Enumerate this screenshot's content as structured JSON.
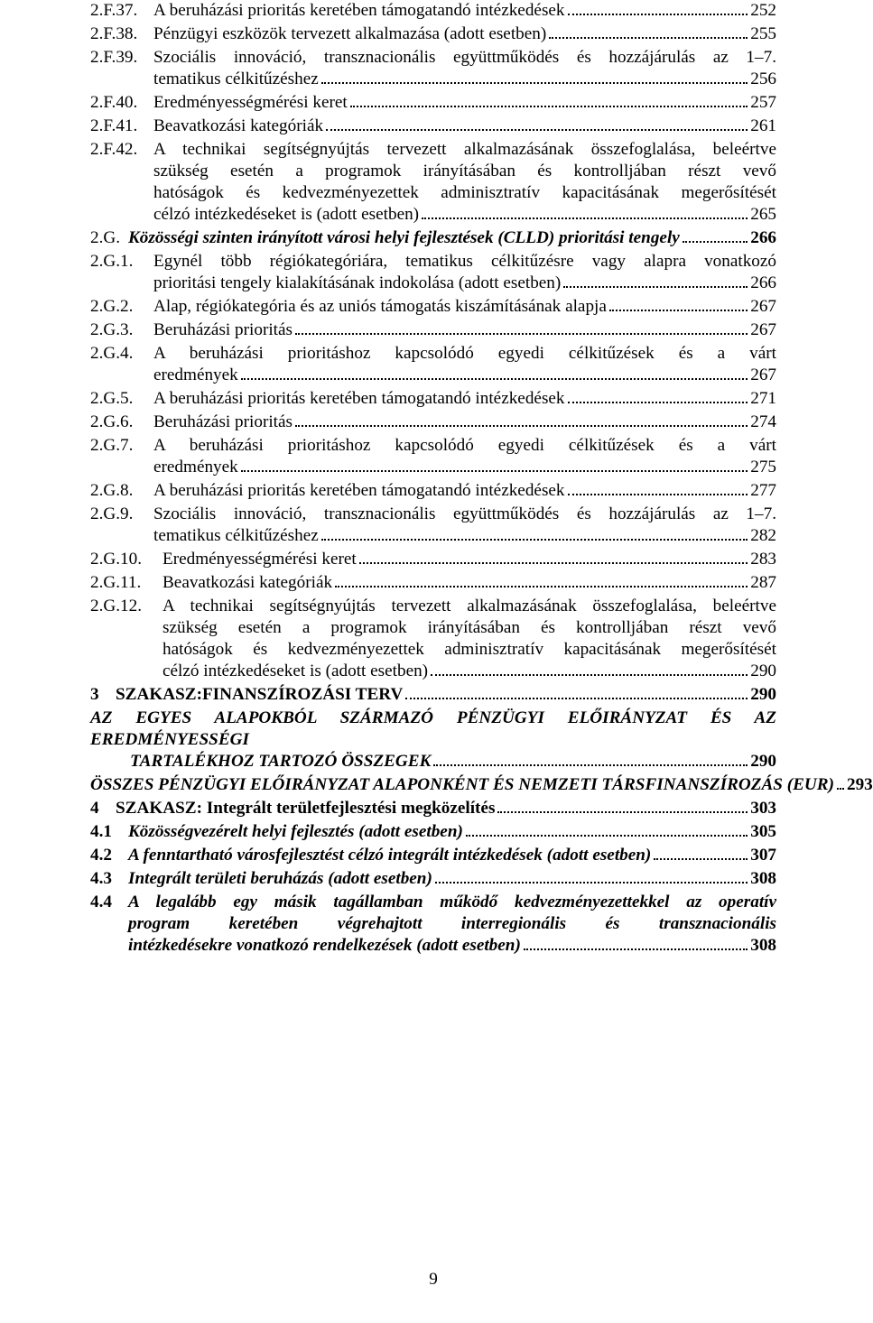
{
  "page_number": "9",
  "font_family": "Times New Roman",
  "text_color": "#000000",
  "background_color": "#ffffff",
  "toc": [
    {
      "num": "2.F.37.",
      "lines": [
        "A beruházási prioritás keretében támogatandó intézkedések"
      ],
      "page": "252",
      "numclass": "toc-num"
    },
    {
      "num": "2.F.38.",
      "lines": [
        "Pénzügyi eszközök tervezett alkalmazása (adott esetben)"
      ],
      "page": "255",
      "numclass": "toc-num"
    },
    {
      "num": "2.F.39.",
      "lines": [
        "Szociális innováció, transznacionális együttműködés és hozzájárulás az 1–7.",
        "tematikus célkitűzéshez"
      ],
      "page": "256",
      "numclass": "toc-num"
    },
    {
      "num": "2.F.40.",
      "lines": [
        "Eredményességmérési keret"
      ],
      "page": "257",
      "numclass": "toc-num"
    },
    {
      "num": "2.F.41.",
      "lines": [
        "Beavatkozási kategóriák"
      ],
      "page": "261",
      "numclass": "toc-num"
    },
    {
      "num": "2.F.42.",
      "lines": [
        "A technikai segítségnyújtás tervezett alkalmazásának összefoglalása, beleértve",
        "szükség esetén a programok irányításában és kontrolljában részt vevő",
        "hatóságok és kedvezményezettek adminisztratív kapacitásának megerősítését",
        "célzó intézkedéseket is (adott esetben)"
      ],
      "page": "265",
      "numclass": "toc-num"
    },
    {
      "num": "2.G.",
      "lines": [
        "Közösségi szinten irányított városi helyi fejlesztések (CLLD) prioritási tengely"
      ],
      "page": "266",
      "style": "italic bold",
      "numclass": "toc-num-mid"
    },
    {
      "num": "2.G.1.",
      "lines": [
        "Egynél több régiókategóriára, tematikus célkitűzésre vagy alapra vonatkozó",
        "prioritási tengely kialakításának indokolása (adott esetben)"
      ],
      "page": "266",
      "numclass": "toc-num"
    },
    {
      "num": "2.G.2.",
      "lines": [
        "Alap, régiókategória és az uniós támogatás kiszámításának alapja"
      ],
      "page": "267",
      "numclass": "toc-num"
    },
    {
      "num": "2.G.3.",
      "lines": [
        "Beruházási prioritás"
      ],
      "page": "267",
      "numclass": "toc-num"
    },
    {
      "num": "2.G.4.",
      "lines": [
        "A beruházási prioritáshoz kapcsolódó egyedi célkitűzések és a várt",
        "eredmények"
      ],
      "page": "267",
      "numclass": "toc-num"
    },
    {
      "num": "2.G.5.",
      "lines": [
        "A beruházási prioritás keretében támogatandó intézkedések"
      ],
      "page": "271",
      "numclass": "toc-num"
    },
    {
      "num": "2.G.6.",
      "lines": [
        "Beruházási prioritás"
      ],
      "page": "274",
      "numclass": "toc-num"
    },
    {
      "num": "2.G.7.",
      "lines": [
        "A beruházási prioritáshoz kapcsolódó egyedi célkitűzések és a várt",
        "eredmények"
      ],
      "page": "275",
      "numclass": "toc-num"
    },
    {
      "num": "2.G.8.",
      "lines": [
        "A beruházási prioritás keretében támogatandó intézkedések"
      ],
      "page": "277",
      "numclass": "toc-num"
    },
    {
      "num": "2.G.9.",
      "lines": [
        "Szociális innováció, transznacionális együttműködés és hozzájárulás az 1–7.",
        "tematikus célkitűzéshez"
      ],
      "page": "282",
      "numclass": "toc-num"
    },
    {
      "num": "2.G.10.",
      "lines": [
        "Eredményességmérési keret"
      ],
      "page": "283",
      "numclass": "toc-num-wide"
    },
    {
      "num": "2.G.11.",
      "lines": [
        "Beavatkozási kategóriák"
      ],
      "page": "287",
      "numclass": "toc-num-wide"
    },
    {
      "num": "2.G.12.",
      "lines": [
        "A technikai segítségnyújtás tervezett alkalmazásának összefoglalása, beleértve",
        "szükség esetén a programok irányításában és kontrolljában részt vevő",
        "hatóságok és kedvezményezettek adminisztratív kapacitásának megerősítését",
        "célzó intézkedéseket is (adott esetben)"
      ],
      "page": "290",
      "numclass": "toc-num-wide"
    },
    {
      "num": "3",
      "lines": [
        "SZAKASZ:FINANSZÍROZÁSI TERV"
      ],
      "page": "290",
      "style": "bold sc",
      "numclass": "toc-num-narrow"
    },
    {
      "num": "",
      "lines": [
        "AZ EGYES ALAPOKBÓL SZÁRMAZÓ PÉNZÜGYI ELŐIRÁNYZAT ÉS AZ EREDMÉNYESSÉGI",
        "TARTALÉKHOZ TARTOZÓ ÖSSZEGEK"
      ],
      "page": "290",
      "style": "bold italic sc",
      "numclass": "none",
      "bodyindent": true
    },
    {
      "num": "",
      "lines": [
        "ÖSSZES PÉNZÜGYI ELŐIRÁNYZAT ALAPONKÉNT ÉS NEMZETI TÁRSFINANSZÍROZÁS (EUR)"
      ],
      "page": "293",
      "style": "bold italic sc",
      "numclass": "none"
    },
    {
      "num": "4",
      "lines": [
        "SZAKASZ: Integrált területfejlesztési megközelítés"
      ],
      "page": "303",
      "style": "bold",
      "numclass": "toc-num-narrow"
    },
    {
      "num": "4.1",
      "lines": [
        "Közösségvezérelt helyi fejlesztés (adott esetben)"
      ],
      "page": "305",
      "style": "bold italic",
      "numclass": "toc-num-mid"
    },
    {
      "num": "4.2",
      "lines": [
        "A fenntartható városfejlesztést célzó integrált intézkedések (adott esetben)"
      ],
      "page": "307",
      "style": "bold italic",
      "numclass": "toc-num-mid"
    },
    {
      "num": "4.3",
      "lines": [
        "Integrált területi beruházás (adott esetben)"
      ],
      "page": "308",
      "style": "bold italic",
      "numclass": "toc-num-mid"
    },
    {
      "num": "4.4",
      "lines": [
        "A legalább egy másik tagállamban működő kedvezményezettekkel az operatív",
        "program keretében végrehajtott interregionális és transznacionális",
        "intézkedésekre vonatkozó rendelkezések (adott esetben)"
      ],
      "page": "308",
      "style": "bold italic",
      "numclass": "toc-num-mid"
    }
  ]
}
